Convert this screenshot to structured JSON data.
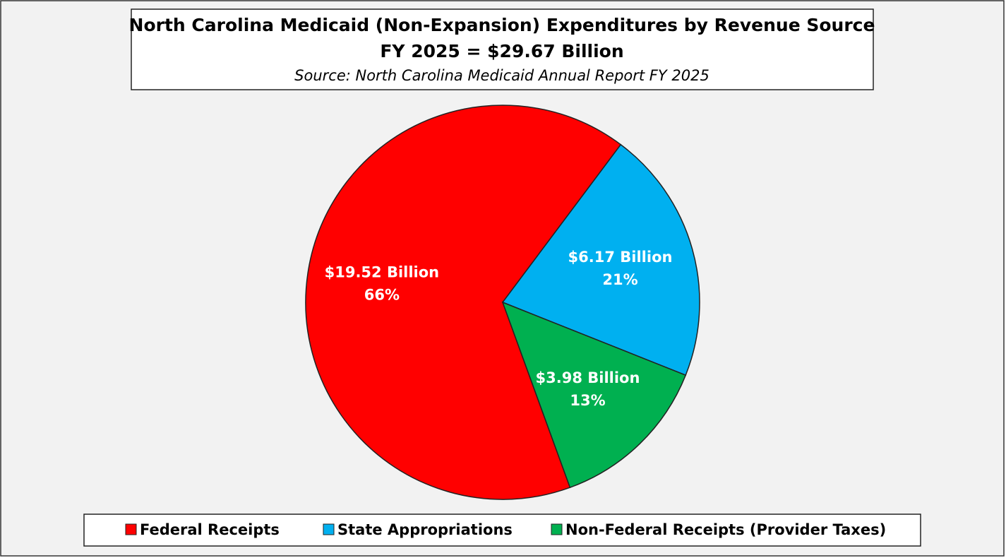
{
  "chart_data": {
    "type": "pie",
    "title": "North Carolina Medicaid (Non-Expansion) Expenditures by Revenue Source",
    "subtitle": "FY 2025 = $29.67 Billion",
    "source": "Source: North Carolina Medicaid Annual Report FY 2025",
    "categories": [
      "Federal Receipts",
      "State Appropriations",
      "Non-Federal Receipts (Provider Taxes)"
    ],
    "values": [
      19.52,
      6.17,
      3.98
    ],
    "value_labels": [
      "$19.52 Billion",
      "$6.17 Billion",
      "$3.98 Billion"
    ],
    "shares": [
      66,
      21,
      13
    ],
    "share_labels": [
      "66%",
      "21%",
      "13%"
    ],
    "colors": [
      "#ff0000",
      "#00b0f0",
      "#00b050"
    ],
    "legend": "bottom"
  }
}
